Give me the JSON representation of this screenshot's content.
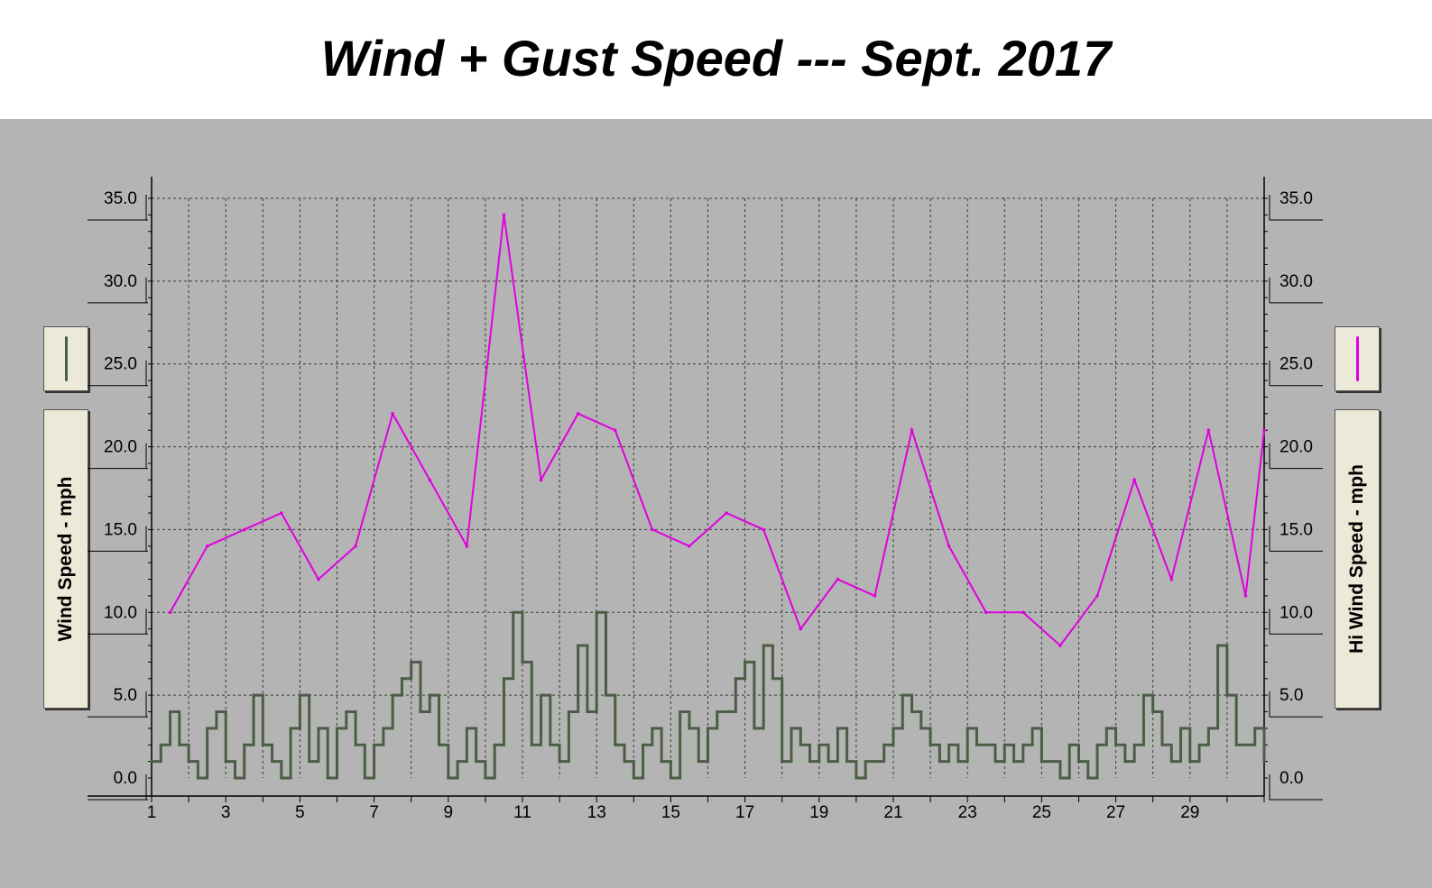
{
  "title": "Wind + Gust Speed --- Sept. 2017",
  "colors": {
    "background": "#b4b4b4",
    "wind": "#4a5e45",
    "gust": "#e000e0",
    "grid": "#3a3a3a",
    "label_box": "#ece9d8"
  },
  "chart_data": {
    "type": "line",
    "title": "Wind + Gust Speed --- Sept. 2017",
    "ylabel_left": "Wind Speed - mph",
    "ylabel_right": "Hi Wind Speed - mph",
    "ylim": [
      0,
      35
    ],
    "y_ticks": [
      "0.0",
      "5.0",
      "10.0",
      "15.0",
      "20.0",
      "25.0",
      "30.0",
      "35.0"
    ],
    "xlim": [
      1,
      31
    ],
    "x_ticks": [
      "1",
      "3",
      "5",
      "7",
      "9",
      "11",
      "13",
      "15",
      "17",
      "19",
      "21",
      "23",
      "25",
      "27",
      "29"
    ],
    "grid": true,
    "legend": [
      {
        "icon": "dark-green-line-icon",
        "position": "left"
      },
      {
        "icon": "magenta-line-icon",
        "position": "right"
      }
    ],
    "series": [
      {
        "axis": "right",
        "color": "#e000e0",
        "x": [
          1.5,
          2.5,
          3.5,
          4.5,
          5.5,
          6.5,
          7.5,
          8.5,
          9.5,
          10.5,
          11.5,
          12.5,
          13.5,
          14.5,
          15.5,
          16.5,
          17.5,
          18.5,
          19.5,
          20.5,
          21.5,
          22.5,
          23.5,
          24.5,
          25.5,
          26.5,
          27.5,
          28.5,
          29.5,
          30.5,
          31.0
        ],
        "values": [
          10,
          14,
          15,
          16,
          12,
          14,
          22,
          18,
          14,
          34,
          18,
          22,
          21,
          15,
          14,
          16,
          15,
          9,
          12,
          11,
          21,
          14,
          10,
          10,
          8,
          11,
          18,
          12,
          21,
          11,
          21
        ]
      },
      {
        "axis": "left",
        "color": "#4a5e45",
        "x": [
          1.0,
          1.25,
          1.5,
          1.75,
          2.0,
          2.25,
          2.5,
          2.75,
          3.0,
          3.25,
          3.5,
          3.75,
          4.0,
          4.25,
          4.5,
          4.75,
          5.0,
          5.25,
          5.5,
          5.75,
          6.0,
          6.25,
          6.5,
          6.75,
          7.0,
          7.25,
          7.5,
          7.75,
          8.0,
          8.25,
          8.5,
          8.75,
          9.0,
          9.25,
          9.5,
          9.75,
          10.0,
          10.25,
          10.5,
          10.75,
          11.0,
          11.25,
          11.5,
          11.75,
          12.0,
          12.25,
          12.5,
          12.75,
          13.0,
          13.25,
          13.5,
          13.75,
          14.0,
          14.25,
          14.5,
          14.75,
          15.0,
          15.25,
          15.5,
          15.75,
          16.0,
          16.25,
          16.5,
          16.75,
          17.0,
          17.25,
          17.5,
          17.75,
          18.0,
          18.25,
          18.5,
          18.75,
          19.0,
          19.25,
          19.5,
          19.75,
          20.0,
          20.25,
          20.5,
          20.75,
          21.0,
          21.25,
          21.5,
          21.75,
          22.0,
          22.25,
          22.5,
          22.75,
          23.0,
          23.25,
          23.5,
          23.75,
          24.0,
          24.25,
          24.5,
          24.75,
          25.0,
          25.25,
          25.5,
          25.75,
          26.0,
          26.25,
          26.5,
          26.75,
          27.0,
          27.25,
          27.5,
          27.75,
          28.0,
          28.25,
          28.5,
          28.75,
          29.0,
          29.25,
          29.5,
          29.75,
          30.0,
          30.25,
          30.5,
          30.75,
          31.0
        ],
        "values": [
          1,
          2,
          4,
          2,
          1,
          0,
          3,
          4,
          1,
          0,
          2,
          5,
          2,
          1,
          0,
          3,
          5,
          1,
          3,
          0,
          3,
          4,
          2,
          0,
          2,
          3,
          5,
          6,
          7,
          4,
          5,
          2,
          0,
          1,
          3,
          1,
          0,
          2,
          6,
          10,
          7,
          2,
          5,
          2,
          1,
          4,
          8,
          4,
          10,
          5,
          2,
          1,
          0,
          2,
          3,
          1,
          0,
          4,
          3,
          1,
          3,
          4,
          4,
          6,
          7,
          3,
          8,
          6,
          1,
          3,
          2,
          1,
          2,
          1,
          3,
          1,
          0,
          1,
          1,
          2,
          3,
          5,
          4,
          3,
          2,
          1,
          2,
          1,
          3,
          2,
          2,
          1,
          2,
          1,
          2,
          3,
          1,
          1,
          0,
          2,
          1,
          0,
          2,
          3,
          2,
          1,
          2,
          5,
          4,
          2,
          1,
          3,
          1,
          2,
          3,
          8,
          5,
          2,
          2,
          3,
          1
        ]
      }
    ]
  }
}
